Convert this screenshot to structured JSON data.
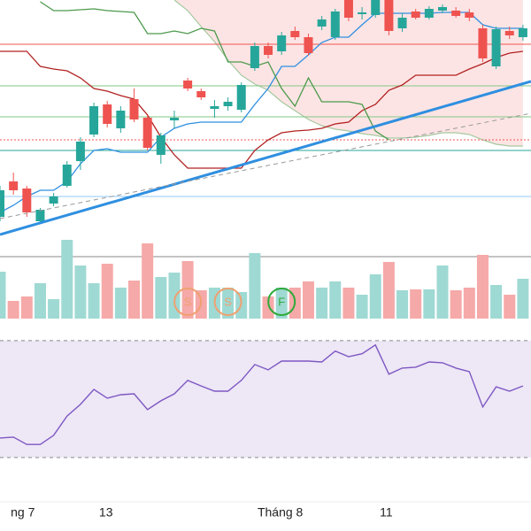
{
  "chart_data": {
    "type": "candlestick",
    "xlim": [
      0,
      39.6
    ],
    "ylim": [
      0,
      270
    ],
    "up_color": "#26a69a",
    "down_color": "#ef5350",
    "open": [
      25,
      65,
      57,
      20,
      40,
      60,
      88,
      118,
      152,
      125,
      158,
      137,
      95,
      134,
      179,
      167,
      147,
      150,
      146,
      193,
      218,
      212,
      235,
      228,
      240,
      228,
      270,
      254,
      253,
      270,
      238,
      257,
      250,
      258,
      258,
      256,
      238,
      195,
      235,
      228
    ],
    "high": [
      60,
      75,
      60,
      35,
      52,
      88,
      115,
      154,
      156,
      150,
      170,
      140,
      120,
      145,
      182,
      170,
      157,
      160,
      177,
      222,
      222,
      234,
      240,
      232,
      252,
      260,
      270,
      262,
      270,
      270,
      255,
      260,
      263,
      265,
      262,
      260,
      242,
      240,
      240,
      242
    ],
    "low": [
      20,
      50,
      25,
      17,
      37,
      58,
      78,
      115,
      126,
      120,
      132,
      100,
      85,
      125,
      167,
      157,
      137,
      145,
      143,
      190,
      204,
      208,
      225,
      207,
      236,
      225,
      246,
      248,
      250,
      230,
      234,
      248,
      248,
      255,
      250,
      246,
      200,
      192,
      226,
      224
    ],
    "close": [
      55,
      55,
      30,
      33,
      48,
      84,
      110,
      150,
      130,
      145,
      135,
      103,
      117,
      137,
      170,
      160,
      150,
      155,
      174,
      218,
      208,
      230,
      228,
      210,
      248,
      257,
      250,
      256,
      270,
      235,
      250,
      250,
      260,
      262,
      252,
      250,
      204,
      237,
      230,
      238
    ],
    "lines": [
      {
        "color": "#2f8fe0",
        "width": 1.3,
        "values": [
          30,
          38,
          48,
          55,
          55,
          65,
          85,
          100,
          102,
          98,
          98,
          98,
          115,
          125,
          130,
          132,
          132,
          132,
          132,
          152,
          170,
          195,
          195,
          208,
          222,
          228,
          228,
          242,
          255,
          255,
          255,
          255,
          255,
          256,
          256,
          256,
          242,
          238,
          238,
          238
        ]
      },
      {
        "color": "#b22222",
        "width": 1.3,
        "values": [
          212,
          212,
          212,
          195,
          192,
          190,
          182,
          170,
          167,
          162,
          158,
          140,
          115,
          95,
          80,
          80,
          80,
          80,
          80,
          100,
          112,
          120,
          122,
          123,
          125,
          130,
          132,
          145,
          152,
          168,
          174,
          185,
          185,
          185,
          185,
          192,
          198,
          205,
          210,
          212
        ]
      },
      {
        "color": "#4c9a4c",
        "width": 1.3,
        "values": [
          null,
          null,
          null,
          268,
          258,
          258,
          259,
          260,
          258,
          257,
          256,
          232,
          232,
          235,
          232,
          238,
          235,
          200,
          200,
          195,
          200,
          170,
          150,
          182,
          155,
          155,
          155,
          152,
          122,
          112,
          null,
          null,
          null,
          null,
          null,
          null,
          null,
          null,
          null,
          null
        ]
      }
    ],
    "cloud": {
      "color": "#fde4e4",
      "edge": "#a5c9a0",
      "upper": [
        null,
        null,
        null,
        null,
        null,
        null,
        null,
        null,
        null,
        null,
        null,
        null,
        null,
        270,
        270,
        270,
        270,
        270,
        270,
        270,
        270,
        270,
        270,
        270,
        270,
        270,
        270,
        270,
        270,
        270,
        270,
        270,
        270,
        270,
        270,
        270,
        270,
        270,
        270,
        270
      ],
      "lower": [
        null,
        null,
        null,
        null,
        null,
        null,
        null,
        null,
        null,
        null,
        null,
        null,
        null,
        270,
        258,
        240,
        223,
        202,
        185,
        175,
        168,
        155,
        145,
        135,
        128,
        124,
        122,
        119,
        117,
        114,
        114,
        115,
        117,
        120,
        120,
        118,
        112,
        107,
        105,
        105
      ]
    },
    "hlines": [
      {
        "value": 220,
        "color": "#ef5350",
        "style": "solid"
      },
      {
        "value": 173,
        "color": "#81c784",
        "style": "solid"
      },
      {
        "value": 138,
        "color": "#81c784",
        "style": "solid"
      },
      {
        "value": 112,
        "color": "#ef5350",
        "style": "dotted"
      },
      {
        "value": 100,
        "color": "#26a69a",
        "style": "solid"
      },
      {
        "value": 48,
        "color": "#90caf9",
        "style": "solid"
      }
    ],
    "trendlines": [
      {
        "color": "#2f8fe0",
        "width": 3,
        "style": "solid",
        "x": [
          0,
          39.6
        ],
        "values": [
          5,
          178
        ]
      },
      {
        "color": "#999999",
        "width": 1,
        "style": "dashed",
        "x": [
          0,
          39.6
        ],
        "values": [
          23,
          142
        ]
      }
    ],
    "markers": [
      {
        "label": "S",
        "x": 14,
        "color": "#f0a070"
      },
      {
        "label": "S",
        "x": 17,
        "color": "#f0a070"
      },
      {
        "label": "F",
        "x": 21,
        "color": "#2eaa3a"
      }
    ],
    "volume": {
      "ylim": [
        0,
        100
      ],
      "values": [
        53,
        20,
        25,
        40,
        22,
        89,
        60,
        40,
        62,
        35,
        43,
        85,
        47,
        52,
        65,
        32,
        35,
        35,
        30,
        74,
        25,
        35,
        35,
        42,
        35,
        42,
        35,
        27,
        50,
        64,
        32,
        33,
        33,
        60,
        32,
        35,
        72,
        38,
        27,
        45
      ],
      "up_color": "#9fd9d3",
      "down_color": "#f5a9a8"
    },
    "rsi": {
      "ylim": [
        17,
        76
      ],
      "values": [
        36.7,
        37.0,
        34.5,
        34.5,
        37.6,
        44.2,
        48.2,
        53.3,
        50.3,
        51.5,
        51.8,
        46.4,
        49.4,
        51.8,
        56.4,
        54.5,
        52.7,
        52.7,
        56.4,
        61.8,
        60.0,
        63.0,
        63.0,
        63.0,
        62.7,
        66.4,
        64.5,
        65.5,
        68.5,
        58.5,
        60.6,
        60.9,
        62.7,
        62.4,
        60.6,
        59.4,
        47.3,
        54.2,
        52.7,
        54.5
      ],
      "bands": [
        70,
        30
      ],
      "color": "#7e57c2",
      "band_color": "#ede7f6"
    },
    "xticks": [
      {
        "value": 0.8,
        "label": "ng 7"
      },
      {
        "value": 7.9,
        "label": "13"
      },
      {
        "value": 20.9,
        "label": "Tháng 8"
      },
      {
        "value": 28.8,
        "label": "11"
      }
    ]
  }
}
